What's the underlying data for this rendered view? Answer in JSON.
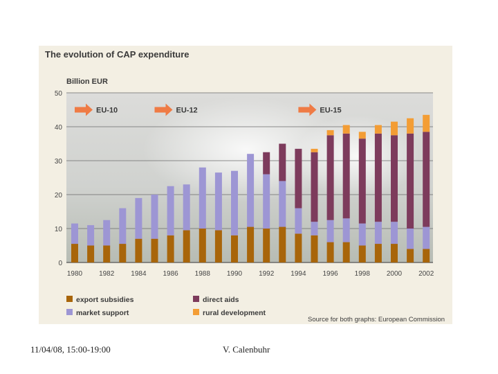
{
  "chart_data": {
    "type": "bar",
    "stacked": true,
    "title": "The evolution of CAP expenditure",
    "ylabel": "Billion EUR",
    "xlabel": "",
    "ylim": [
      0,
      50
    ],
    "yticks": [
      0,
      10,
      20,
      30,
      40,
      50
    ],
    "grid": true,
    "categories": [
      "1980",
      "1981",
      "1982",
      "1983",
      "1984",
      "1985",
      "1986",
      "1987",
      "1988",
      "1989",
      "1990",
      "1991",
      "1992",
      "1993",
      "1994",
      "1995",
      "1996",
      "1997",
      "1998",
      "1999",
      "2000",
      "2001",
      "2002"
    ],
    "xtick_labels": [
      "1980",
      "1982",
      "1984",
      "1986",
      "1988",
      "1990",
      "1992",
      "1994",
      "1996",
      "1998",
      "2000",
      "2002"
    ],
    "series": [
      {
        "name": "export subsidies",
        "color": "#a8650a",
        "values": [
          5.5,
          5,
          5,
          5.5,
          7,
          7,
          8,
          9.5,
          10,
          9.5,
          8,
          10.5,
          10,
          10.5,
          8.5,
          8,
          6,
          6,
          5,
          5.5,
          5.5,
          4,
          4
        ]
      },
      {
        "name": "market support",
        "color": "#9d96d4",
        "values": [
          6,
          6,
          7.5,
          10.5,
          12,
          13,
          14.5,
          13.5,
          18,
          17,
          19,
          21.5,
          16,
          13.5,
          7.5,
          4,
          6.5,
          7,
          6.5,
          6.5,
          6.5,
          6,
          6.5
        ]
      },
      {
        "name": "direct aids",
        "color": "#7d3b5c",
        "values": [
          0,
          0,
          0,
          0,
          0,
          0,
          0,
          0,
          0,
          0,
          0,
          0,
          6.5,
          11,
          17.5,
          20.5,
          25,
          25,
          25,
          26,
          25.5,
          28,
          28
        ]
      },
      {
        "name": "rural development",
        "color": "#f39d35",
        "values": [
          0,
          0,
          0,
          0,
          0,
          0,
          0,
          0,
          0,
          0,
          0,
          0,
          0,
          0,
          0,
          1,
          1.5,
          2.5,
          2,
          2.5,
          4,
          4.5,
          5
        ]
      }
    ],
    "annotations": [
      {
        "label": "EU-10",
        "x": "1980"
      },
      {
        "label": "EU-12",
        "x": "1985"
      },
      {
        "label": "EU-15",
        "x": "1994"
      }
    ],
    "legend_position": "bottom",
    "source": "Source for both graphs: European Commission"
  },
  "footer": {
    "date": "11/04/08, 15:00-19:00",
    "author": "V. Calenbuhr"
  }
}
